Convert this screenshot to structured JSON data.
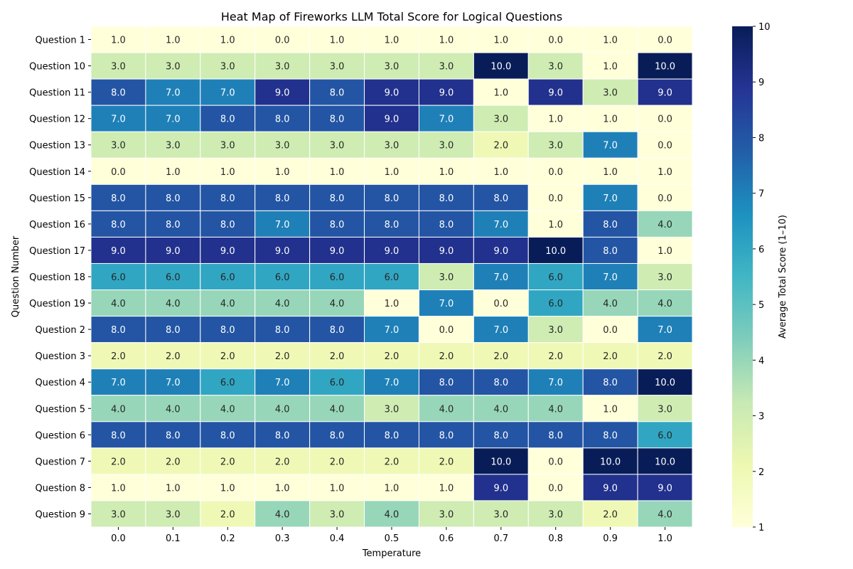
{
  "chart_data": {
    "type": "heatmap",
    "title": "Heat Map of Fireworks LLM Total Score for Logical Questions",
    "xlabel": "Temperature",
    "ylabel": "Question Number",
    "colorbar_label": "Average Total Score (1–10)",
    "colormap": "YlGnBu",
    "vmin": 1,
    "vmax": 10,
    "colorbar_ticks": [
      "1",
      "2",
      "3",
      "4",
      "5",
      "6",
      "7",
      "8",
      "9",
      "10"
    ],
    "x": [
      "0.0",
      "0.1",
      "0.2",
      "0.3",
      "0.4",
      "0.5",
      "0.6",
      "0.7",
      "0.8",
      "0.9",
      "1.0"
    ],
    "y": [
      "Question 1",
      "Question 10",
      "Question 11",
      "Question 12",
      "Question 13",
      "Question 14",
      "Question 15",
      "Question 16",
      "Question 17",
      "Question 18",
      "Question 19",
      "Question 2",
      "Question 3",
      "Question 4",
      "Question 5",
      "Question 6",
      "Question 7",
      "Question 8",
      "Question 9"
    ],
    "values": [
      [
        1,
        1,
        1,
        0,
        1,
        1,
        1,
        1,
        0,
        1,
        0
      ],
      [
        3,
        3,
        3,
        3,
        3,
        3,
        3,
        10,
        3,
        1,
        10
      ],
      [
        8,
        7,
        7,
        9,
        8,
        9,
        9,
        1,
        9,
        3,
        9
      ],
      [
        7,
        7,
        8,
        8,
        8,
        9,
        7,
        3,
        1,
        1,
        0
      ],
      [
        3,
        3,
        3,
        3,
        3,
        3,
        3,
        2,
        3,
        7,
        0
      ],
      [
        0,
        1,
        1,
        1,
        1,
        1,
        1,
        1,
        0,
        1,
        1
      ],
      [
        8,
        8,
        8,
        8,
        8,
        8,
        8,
        8,
        0,
        7,
        0
      ],
      [
        8,
        8,
        8,
        7,
        8,
        8,
        8,
        7,
        1,
        8,
        4
      ],
      [
        9,
        9,
        9,
        9,
        9,
        9,
        9,
        9,
        10,
        8,
        1
      ],
      [
        6,
        6,
        6,
        6,
        6,
        6,
        3,
        7,
        6,
        7,
        3
      ],
      [
        4,
        4,
        4,
        4,
        4,
        1,
        7,
        0,
        6,
        4,
        4
      ],
      [
        8,
        8,
        8,
        8,
        8,
        7,
        0,
        7,
        3,
        0,
        7
      ],
      [
        2,
        2,
        2,
        2,
        2,
        2,
        2,
        2,
        2,
        2,
        2
      ],
      [
        7,
        7,
        6,
        7,
        6,
        7,
        8,
        8,
        7,
        8,
        10
      ],
      [
        4,
        4,
        4,
        4,
        4,
        3,
        4,
        4,
        4,
        1,
        3
      ],
      [
        8,
        8,
        8,
        8,
        8,
        8,
        8,
        8,
        8,
        8,
        6
      ],
      [
        2,
        2,
        2,
        2,
        2,
        2,
        2,
        10,
        0,
        10,
        10
      ],
      [
        1,
        1,
        1,
        1,
        1,
        1,
        1,
        9,
        0,
        9,
        9
      ],
      [
        3,
        3,
        2,
        4,
        3,
        4,
        3,
        3,
        3,
        2,
        4
      ]
    ],
    "grid": false,
    "legend": "colorbar-right"
  }
}
